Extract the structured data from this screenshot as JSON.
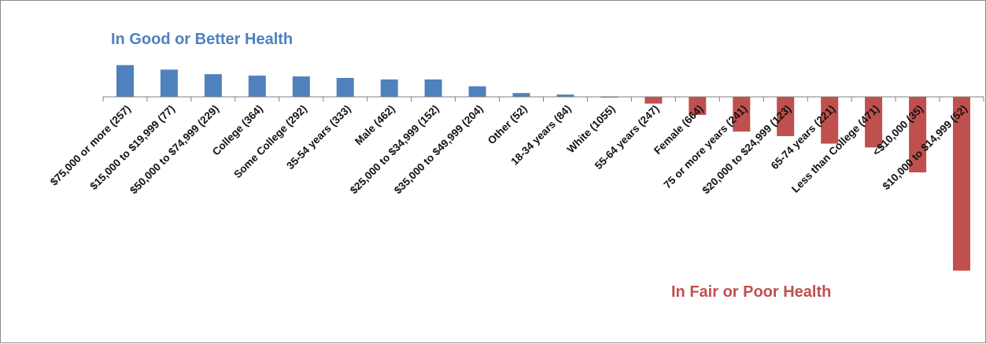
{
  "chart_data": {
    "type": "bar",
    "title": "",
    "xlabel": "",
    "ylabel": "",
    "categories": [
      "$75,000 or more (257)",
      "$15,000 to $19,999 (77)",
      "$50,000 to $74,999 (229)",
      "College (364)",
      "Some College (292)",
      "35-54 years (333)",
      "Male (462)",
      "$25,000 to $34,999 (152)",
      "$35,000 to $49,999 (204)",
      "Other (52)",
      "18-34 years (84)",
      "White (1055)",
      "55-64 years (247)",
      "Female (664)",
      "75 or more years (241)",
      "$20,000 to $24,999 (123)",
      "65-74 years (221)",
      "Less than College (471)",
      "<$10,000 (35)",
      "$10,000 to $14,999 (52)"
    ],
    "values": [
      42,
      36,
      30,
      28,
      27,
      25,
      23,
      23,
      14,
      5,
      3,
      -1,
      -9,
      -24,
      -46,
      -52,
      -62,
      -67,
      -100,
      -230
    ],
    "ylim": [
      -250,
      60
    ],
    "grid": false,
    "axis_visible": false,
    "annotations": {
      "positive": "In Good or Better Health",
      "negative": "In Fair or Poor Health"
    },
    "colors": {
      "positive": "#4f81bd",
      "negative": "#c0504d",
      "label": "#111111",
      "axis": "#808080"
    }
  }
}
